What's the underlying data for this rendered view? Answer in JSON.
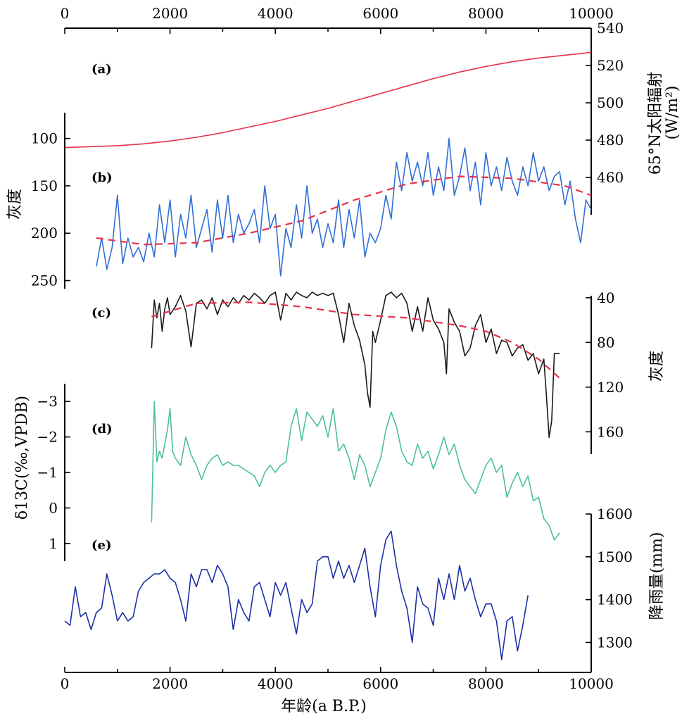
{
  "chart_data": {
    "type": "line",
    "x_axis": {
      "label": "年龄(a B.P.)",
      "range": [
        0,
        10000
      ],
      "ticks": [
        0,
        2000,
        4000,
        6000,
        8000,
        10000
      ],
      "tick_labels": [
        "0",
        "2000",
        "4000",
        "6000",
        "8000",
        "10000"
      ]
    },
    "panels": [
      {
        "id": "a",
        "label": "(a)",
        "ylabel": "65°N太阳辐射(W/m²)",
        "ylabel_line1": "65°N太阳辐射",
        "ylabel_line2": "(W/m²)",
        "yaxis_side": "right",
        "ylim": [
          440,
          540
        ],
        "yticks": [
          460,
          480,
          500,
          520,
          540
        ],
        "series": [
          {
            "name": "insolation",
            "color": "#e8314a",
            "style": "solid",
            "x": [
              0,
              500,
              1000,
              1500,
              2000,
              2500,
              3000,
              3500,
              4000,
              4500,
              5000,
              5500,
              6000,
              6500,
              7000,
              7500,
              8000,
              8500,
              9000,
              9500,
              10000
            ],
            "y": [
              476,
              476.5,
              477,
              478,
              479.5,
              481.5,
              484,
              487,
              490,
              493.5,
              497,
              501,
              505,
              509,
              513,
              516.5,
              519.5,
              522,
              524,
              525.5,
              527
            ]
          }
        ]
      },
      {
        "id": "b",
        "label": "(b)",
        "ylabel": "灰度",
        "yaxis_side": "left",
        "ylim": [
          260,
          75
        ],
        "yticks": [
          100,
          150,
          200,
          250
        ],
        "series": [
          {
            "name": "grayscale-b",
            "color": "#2f6fd6",
            "style": "solid",
            "x": [
              600,
              700,
              800,
              900,
              1000,
              1100,
              1200,
              1300,
              1400,
              1500,
              1600,
              1700,
              1800,
              1900,
              2000,
              2100,
              2200,
              2300,
              2400,
              2500,
              2600,
              2700,
              2800,
              2900,
              3000,
              3100,
              3200,
              3300,
              3400,
              3500,
              3600,
              3700,
              3800,
              3900,
              4000,
              4100,
              4200,
              4300,
              4400,
              4500,
              4600,
              4700,
              4800,
              4900,
              5000,
              5100,
              5200,
              5300,
              5400,
              5500,
              5600,
              5700,
              5800,
              5900,
              6000,
              6100,
              6200,
              6300,
              6400,
              6500,
              6600,
              6700,
              6800,
              6900,
              7000,
              7100,
              7200,
              7300,
              7400,
              7500,
              7600,
              7700,
              7800,
              7900,
              8000,
              8100,
              8200,
              8300,
              8400,
              8500,
              8600,
              8700,
              8800,
              8900,
              9000,
              9100,
              9200,
              9300,
              9400,
              9500,
              9600,
              9700,
              9800,
              9900,
              10000
            ],
            "y": [
              235,
              205,
              238,
              215,
              160,
              232,
              205,
              225,
              215,
              230,
              200,
              225,
              170,
              210,
              165,
              225,
              180,
              205,
              160,
              215,
              195,
              175,
              220,
              165,
              205,
              160,
              210,
              180,
              200,
              190,
              175,
              210,
              150,
              195,
              180,
              245,
              195,
              215,
              170,
              205,
              150,
              200,
              185,
              215,
              190,
              210,
              165,
              215,
              175,
              205,
              165,
              225,
              200,
              210,
              195,
              160,
              185,
              125,
              155,
              115,
              145,
              125,
              150,
              115,
              160,
              130,
              155,
              100,
              160,
              140,
              110,
              155,
              125,
              170,
              115,
              150,
              130,
              155,
              120,
              145,
              160,
              130,
              150,
              115,
              145,
              130,
              155,
              140,
              135,
              170,
              145,
              185,
              210,
              165,
              175
            ]
          },
          {
            "name": "trend-b",
            "color": "#e8314a",
            "style": "dashed",
            "x": [
              600,
              1500,
              2500,
              3500,
              4500,
              5500,
              6500,
              7500,
              8500,
              9500,
              10000
            ],
            "y": [
              205,
              212,
              210,
              200,
              187,
              165,
              148,
              140,
              142,
              150,
              160
            ]
          }
        ]
      },
      {
        "id": "c",
        "label": "(c)",
        "ylabel": "灰度",
        "yaxis_side": "right",
        "ylim": [
          30,
          180
        ],
        "yticks": [
          40,
          80,
          120,
          160
        ],
        "series": [
          {
            "name": "grayscale-c",
            "color": "#1a1a1a",
            "style": "solid",
            "x": [
              1650,
              1700,
              1750,
              1800,
              1850,
              1900,
              1950,
              2000,
              2100,
              2200,
              2300,
              2400,
              2500,
              2600,
              2700,
              2800,
              2900,
              3000,
              3100,
              3200,
              3300,
              3400,
              3500,
              3600,
              3700,
              3800,
              3900,
              4000,
              4100,
              4200,
              4300,
              4400,
              4500,
              4600,
              4700,
              4800,
              4900,
              5000,
              5100,
              5200,
              5300,
              5400,
              5500,
              5600,
              5700,
              5750,
              5800,
              5850,
              5900,
              6000,
              6100,
              6200,
              6300,
              6400,
              6500,
              6600,
              6700,
              6800,
              6900,
              7000,
              7100,
              7200,
              7250,
              7300,
              7400,
              7500,
              7600,
              7700,
              7800,
              7900,
              8000,
              8100,
              8200,
              8300,
              8400,
              8500,
              8600,
              8700,
              8800,
              8900,
              9000,
              9100,
              9150,
              9200,
              9250,
              9300,
              9400
            ],
            "y": [
              85,
              42,
              58,
              45,
              70,
              50,
              40,
              55,
              48,
              38,
              52,
              84,
              45,
              42,
              50,
              40,
              55,
              42,
              48,
              40,
              45,
              38,
              42,
              36,
              40,
              45,
              38,
              35,
              60,
              36,
              42,
              35,
              38,
              40,
              35,
              38,
              36,
              38,
              36,
              55,
              80,
              45,
              65,
              78,
              100,
              125,
              138,
              70,
              80,
              60,
              38,
              35,
              40,
              36,
              45,
              70,
              48,
              70,
              40,
              60,
              68,
              80,
              108,
              50,
              62,
              70,
              92,
              85,
              65,
              55,
              80,
              68,
              90,
              78,
              80,
              92,
              85,
              82,
              96,
              90,
              108,
              95,
              128,
              165,
              150,
              90,
              90
            ]
          },
          {
            "name": "trend-c",
            "color": "#e8314a",
            "style": "dashed",
            "x": [
              1650,
              2500,
              3500,
              4500,
              5500,
              6500,
              7500,
              8000,
              8500,
              9000,
              9400
            ],
            "y": [
              57,
              45,
              44,
              48,
              55,
              58,
              65,
              70,
              80,
              95,
              112
            ]
          }
        ]
      },
      {
        "id": "d",
        "label": "(d)",
        "ylabel": "δ13C(‰,VPDB)",
        "yaxis_side": "left",
        "ylim": [
          1.5,
          -3.5
        ],
        "yticks": [
          -3,
          -2,
          -1,
          0,
          1
        ],
        "ytick_labels": [
          "−3",
          "−2",
          "−1",
          "0",
          "1"
        ],
        "series": [
          {
            "name": "d13C",
            "color": "#4dbf9e",
            "style": "solid",
            "x": [
              1650,
              1700,
              1750,
              1800,
              1850,
              1900,
              1950,
              2000,
              2050,
              2100,
              2200,
              2300,
              2400,
              2500,
              2600,
              2700,
              2800,
              2900,
              3000,
              3100,
              3200,
              3300,
              3400,
              3500,
              3600,
              3700,
              3800,
              3900,
              4000,
              4100,
              4200,
              4300,
              4400,
              4500,
              4600,
              4700,
              4800,
              4900,
              5000,
              5100,
              5200,
              5300,
              5400,
              5500,
              5600,
              5700,
              5800,
              5900,
              6000,
              6100,
              6200,
              6300,
              6400,
              6500,
              6600,
              6700,
              6800,
              6900,
              7000,
              7100,
              7200,
              7300,
              7400,
              7500,
              7600,
              7700,
              7800,
              7900,
              8000,
              8100,
              8200,
              8300,
              8400,
              8500,
              8600,
              8700,
              8800,
              8900,
              9000,
              9100,
              9200,
              9300,
              9400
            ],
            "y": [
              0.4,
              -3.0,
              -1.3,
              -1.6,
              -1.4,
              -1.8,
              -2.2,
              -2.8,
              -1.6,
              -1.4,
              -1.2,
              -2.0,
              -1.5,
              -1.2,
              -0.8,
              -1.2,
              -1.4,
              -1.5,
              -1.2,
              -1.3,
              -1.2,
              -1.2,
              -1.1,
              -1.0,
              -0.9,
              -0.6,
              -1.0,
              -1.2,
              -1.0,
              -1.2,
              -1.3,
              -2.3,
              -2.8,
              -1.9,
              -2.7,
              -2.5,
              -2.3,
              -2.6,
              -2.0,
              -2.8,
              -1.6,
              -1.8,
              -1.4,
              -0.8,
              -1.5,
              -1.2,
              -0.6,
              -1.0,
              -1.4,
              -2.2,
              -2.7,
              -2.3,
              -1.6,
              -1.3,
              -1.2,
              -1.8,
              -1.4,
              -1.6,
              -1.1,
              -1.5,
              -2.0,
              -1.5,
              -1.8,
              -1.2,
              -0.8,
              -0.6,
              -0.4,
              -0.8,
              -1.2,
              -1.4,
              -1.0,
              -1.2,
              -0.3,
              -0.7,
              -1.0,
              -0.6,
              -0.9,
              -0.2,
              -0.3,
              0.3,
              0.5,
              0.9,
              0.7
            ]
          }
        ]
      },
      {
        "id": "e",
        "label": "(e)",
        "ylabel": "降雨量(mm)",
        "yaxis_side": "right",
        "ylim": [
          1230,
          1600
        ],
        "yticks": [
          1300,
          1400,
          1500,
          1600
        ],
        "series": [
          {
            "name": "rainfall",
            "color": "#1c2fa5",
            "style": "solid",
            "x": [
              0,
              100,
              200,
              300,
              400,
              500,
              600,
              700,
              800,
              900,
              1000,
              1100,
              1200,
              1300,
              1400,
              1500,
              1600,
              1700,
              1800,
              1900,
              2000,
              2100,
              2200,
              2300,
              2400,
              2500,
              2600,
              2700,
              2800,
              2900,
              3000,
              3100,
              3200,
              3300,
              3400,
              3500,
              3600,
              3700,
              3800,
              3900,
              4000,
              4100,
              4200,
              4300,
              4400,
              4500,
              4600,
              4700,
              4800,
              4900,
              5000,
              5100,
              5200,
              5300,
              5400,
              5500,
              5600,
              5700,
              5800,
              5900,
              6000,
              6100,
              6200,
              6300,
              6400,
              6500,
              6600,
              6700,
              6800,
              6900,
              7000,
              7100,
              7200,
              7300,
              7400,
              7500,
              7600,
              7700,
              7800,
              7900,
              8000,
              8100,
              8200,
              8300,
              8400,
              8500,
              8600,
              8700,
              8800
            ],
            "y": [
              1350,
              1340,
              1430,
              1360,
              1370,
              1330,
              1370,
              1380,
              1460,
              1410,
              1350,
              1370,
              1350,
              1360,
              1420,
              1440,
              1450,
              1460,
              1460,
              1470,
              1450,
              1440,
              1400,
              1350,
              1460,
              1430,
              1470,
              1470,
              1440,
              1480,
              1460,
              1430,
              1330,
              1400,
              1370,
              1350,
              1430,
              1440,
              1400,
              1360,
              1440,
              1410,
              1440,
              1380,
              1320,
              1400,
              1370,
              1390,
              1490,
              1500,
              1500,
              1450,
              1490,
              1450,
              1480,
              1440,
              1480,
              1520,
              1430,
              1360,
              1480,
              1540,
              1560,
              1480,
              1420,
              1380,
              1300,
              1430,
              1390,
              1380,
              1340,
              1450,
              1400,
              1460,
              1400,
              1480,
              1420,
              1450,
              1400,
              1360,
              1390,
              1390,
              1350,
              1260,
              1350,
              1360,
              1280,
              1340,
              1410
            ]
          }
        ]
      }
    ]
  }
}
